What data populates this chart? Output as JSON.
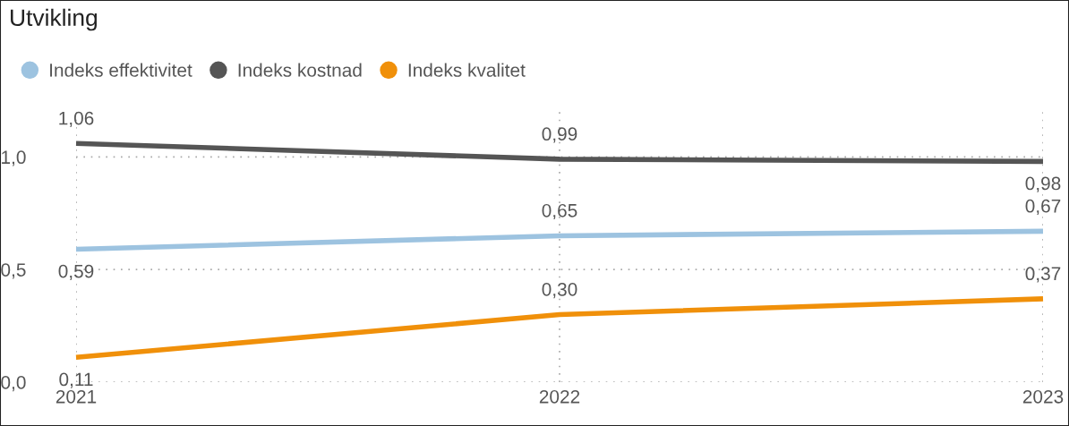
{
  "chart_data": {
    "type": "line",
    "title": "Utvikling",
    "x": [
      2021,
      2022,
      2023
    ],
    "series": [
      {
        "name": "Indeks effektivitet",
        "color": "#9dc3e0",
        "values": [
          0.59,
          0.65,
          0.67
        ],
        "value_labels": [
          "0,59",
          "0,65",
          "0,67"
        ]
      },
      {
        "name": "Indeks kostnad",
        "color": "#555555",
        "values": [
          1.06,
          0.99,
          0.98
        ],
        "value_labels": [
          "1,06",
          "0,99",
          "0,98"
        ]
      },
      {
        "name": "Indeks kvalitet",
        "color": "#f0900a",
        "values": [
          0.11,
          0.3,
          0.37
        ],
        "value_labels": [
          "0,11",
          "0,30",
          "0,37"
        ]
      }
    ],
    "xlim": [
      2021,
      2023
    ],
    "xticks": [
      2021,
      2022,
      2023
    ],
    "ylim": [
      0,
      1.2
    ],
    "yticks": [
      {
        "value": 0,
        "label": "0,0"
      },
      {
        "value": 0.5,
        "label": "0,5"
      },
      {
        "value": 1.0,
        "label": "1,0"
      }
    ],
    "grid": true,
    "legend": "top left",
    "marker": "none",
    "line_style": "solid"
  }
}
